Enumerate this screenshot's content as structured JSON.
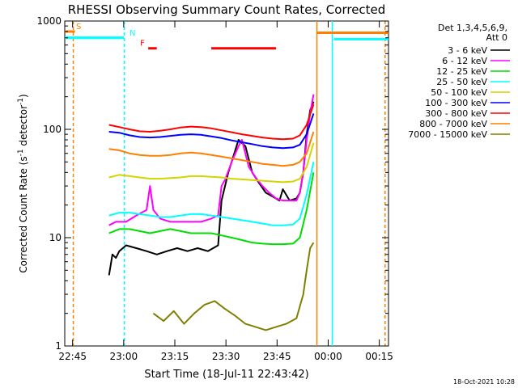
{
  "chart_data": {
    "type": "line",
    "title": "RHESSI Observing Summary Count Rates, Corrected",
    "xlabel": "Start Time (18-Jul-11 22:43:42)",
    "ylabel": "Corrected Count Rate (s⁻¹ detector⁻¹)",
    "ylabel_main": "Corrected Count Rate (s",
    "ylabel_sup1": "-1",
    "ylabel_mid": " detector",
    "ylabel_sup2": "-1",
    "ylabel_end": ")",
    "y_scale": "log",
    "ylim": [
      1,
      1000
    ],
    "xlim_minutes": [
      -1,
      94
    ],
    "x_ticks": [
      "22:45",
      "23:00",
      "23:15",
      "23:30",
      "23:45",
      "00:00",
      "00:15"
    ],
    "x_tick_minutes": [
      1.3,
      16.3,
      31.3,
      46.3,
      61.3,
      76.3,
      91.3
    ],
    "y_ticks": [
      "1",
      "10",
      "100",
      "1000"
    ],
    "y_tick_values": [
      1,
      10,
      100,
      1000
    ],
    "legend_header": [
      "Det 1,3,4,5,6,9,",
      "Att 0"
    ],
    "legend_placement": "right",
    "series": [
      {
        "name": "3 - 6 keV",
        "color": "#000000",
        "x": [
          12,
          13,
          14,
          15,
          17,
          20,
          23,
          26,
          29,
          32,
          35,
          38,
          41,
          44,
          45,
          47,
          50,
          52,
          54,
          56,
          58,
          60,
          62,
          63,
          65,
          67,
          68,
          69,
          70,
          71,
          72
        ],
        "y": [
          4.5,
          7,
          6.5,
          7.5,
          8.5,
          8,
          7.5,
          7,
          7.5,
          8,
          7.5,
          8,
          7.5,
          8.5,
          22,
          40,
          80,
          70,
          40,
          32,
          26,
          24,
          22,
          28,
          22,
          23,
          26,
          40,
          90,
          150,
          180
        ]
      },
      {
        "name": "6 - 12 keV",
        "color": "#ff00ff",
        "x": [
          12,
          14,
          17,
          20,
          23,
          24,
          25,
          27,
          30,
          33,
          36,
          39,
          42,
          44,
          45,
          46,
          48,
          50,
          51,
          53,
          55,
          57,
          59,
          61,
          63,
          65,
          67,
          68,
          69,
          70,
          71,
          72
        ],
        "y": [
          13,
          14,
          14,
          16,
          18,
          30,
          18,
          15,
          14,
          14,
          14,
          14,
          15,
          16,
          30,
          34,
          50,
          70,
          80,
          45,
          36,
          30,
          26,
          23,
          22,
          22,
          22,
          26,
          40,
          80,
          140,
          210
        ]
      },
      {
        "name": "12 - 25 keV",
        "color": "#00dd00",
        "x": [
          12,
          15,
          18,
          21,
          24,
          27,
          30,
          33,
          36,
          39,
          42,
          45,
          48,
          51,
          54,
          57,
          60,
          63,
          66,
          68,
          70,
          72
        ],
        "y": [
          11,
          12,
          12,
          11.5,
          11,
          11.5,
          12,
          11.5,
          11,
          11,
          11,
          10.5,
          10,
          9.5,
          9,
          8.8,
          8.7,
          8.7,
          8.8,
          10,
          18,
          40
        ]
      },
      {
        "name": "25 - 50 keV",
        "color": "#00ffff",
        "x": [
          12,
          15,
          18,
          21,
          24,
          27,
          30,
          33,
          36,
          39,
          42,
          45,
          48,
          51,
          54,
          57,
          60,
          63,
          66,
          68,
          70,
          72
        ],
        "y": [
          16,
          17,
          17,
          16.5,
          16,
          15.5,
          15.5,
          16,
          16.5,
          16.5,
          16,
          15.5,
          15,
          14.5,
          14,
          13.5,
          13,
          13,
          13.2,
          15,
          25,
          50
        ]
      },
      {
        "name": "50 - 100 keV",
        "color": "#d4d400",
        "x": [
          12,
          15,
          18,
          21,
          24,
          27,
          30,
          33,
          36,
          39,
          42,
          45,
          48,
          51,
          54,
          57,
          60,
          63,
          66,
          68,
          70,
          72
        ],
        "y": [
          36,
          38,
          37,
          36,
          35,
          35,
          35.5,
          36,
          37,
          37,
          36.5,
          36,
          35,
          34.5,
          34,
          33.5,
          33,
          32.5,
          33,
          35,
          45,
          75
        ]
      },
      {
        "name": "100 - 300 keV",
        "color": "#0000ff",
        "x": [
          12,
          15,
          18,
          21,
          24,
          27,
          30,
          33,
          36,
          39,
          42,
          45,
          48,
          51,
          54,
          57,
          60,
          63,
          66,
          68,
          70,
          72
        ],
        "y": [
          95,
          93,
          88,
          85,
          84,
          85,
          87,
          89,
          90,
          89,
          86,
          83,
          79,
          76,
          73,
          70,
          68,
          67,
          68,
          72,
          90,
          140
        ]
      },
      {
        "name": "300 - 800 keV",
        "color": "#ff0000",
        "x": [
          12,
          15,
          18,
          21,
          24,
          27,
          30,
          33,
          36,
          39,
          42,
          45,
          48,
          51,
          54,
          57,
          60,
          63,
          66,
          68,
          70,
          72
        ],
        "y": [
          110,
          105,
          100,
          96,
          95,
          97,
          100,
          104,
          106,
          105,
          102,
          98,
          94,
          90,
          87,
          84,
          82,
          81,
          82,
          88,
          110,
          170
        ]
      },
      {
        "name": "800 - 7000 keV",
        "color": "#ff8000",
        "x": [
          12,
          15,
          18,
          21,
          24,
          27,
          30,
          33,
          36,
          39,
          42,
          45,
          48,
          51,
          54,
          57,
          60,
          63,
          66,
          68,
          70,
          72
        ],
        "y": [
          66,
          64,
          60,
          58,
          57,
          57,
          58,
          60,
          61,
          60,
          58,
          56,
          54,
          52,
          50,
          48,
          47,
          46,
          47,
          50,
          60,
          95
        ]
      },
      {
        "name": "7000 - 15000 keV",
        "color": "#808000",
        "x": [
          25,
          28,
          31,
          34,
          37,
          40,
          43,
          46,
          49,
          52,
          55,
          58,
          61,
          64,
          67,
          69,
          70,
          71,
          72
        ],
        "y": [
          2,
          1.7,
          2.1,
          1.6,
          2,
          2.4,
          2.6,
          2.2,
          1.9,
          1.6,
          1.5,
          1.4,
          1.5,
          1.6,
          1.8,
          3,
          5,
          8,
          9
        ]
      }
    ],
    "flag_bars": [
      {
        "label": "S",
        "color": "#ff8000",
        "x_start": -1,
        "x_end": 2,
        "value": 800
      },
      {
        "label": "",
        "color": "#00ffff",
        "x_start": -1,
        "x_end": 16.3,
        "value": 700
      },
      {
        "label": "N",
        "color": "#00ffff",
        "x_start": -1,
        "x_end": 16.3,
        "value": 700
      },
      {
        "label": "F",
        "color": "#ff0000",
        "x_start": 23.5,
        "x_end": 26,
        "value": 560
      },
      {
        "label": "",
        "color": "#ff0000",
        "x_start": 42,
        "x_end": 61,
        "value": 560
      },
      {
        "label": "",
        "color": "#ff8000",
        "x_start": 73,
        "x_end": 94,
        "value": 780
      },
      {
        "label": "",
        "color": "#00ffff",
        "x_start": 78,
        "x_end": 94,
        "value": 680
      }
    ],
    "vertical_markers": [
      {
        "color": "#ff8000",
        "style": "dashed",
        "x": 1.5
      },
      {
        "color": "#00ffff",
        "style": "dashed",
        "x": 16.5
      },
      {
        "color": "#ff8000",
        "style": "solid",
        "x": 73
      },
      {
        "color": "#00ffff",
        "style": "solid",
        "x": 77.5
      },
      {
        "color": "#ff8000",
        "style": "dashed",
        "x": 93
      }
    ],
    "footer_timestamp": "18-Oct-2021 10:28",
    "grid": false
  }
}
